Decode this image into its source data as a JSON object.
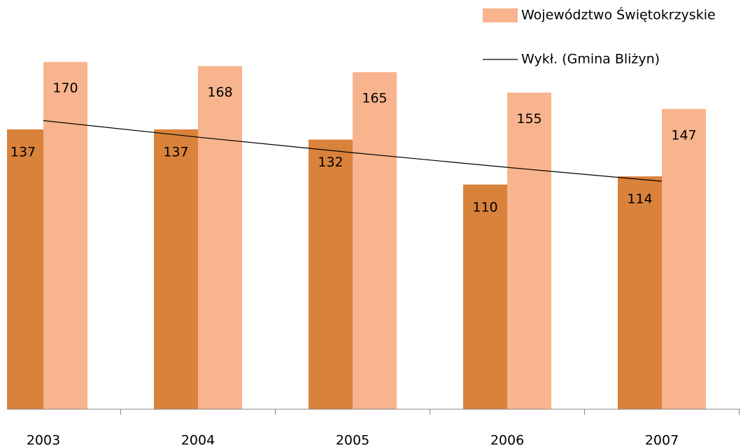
{
  "chart_data": {
    "type": "bar",
    "categories": [
      "2003",
      "2004",
      "2005",
      "2006",
      "2007"
    ],
    "series": [
      {
        "color": "#d9823b",
        "values": [
          137,
          137,
          132,
          110,
          114
        ]
      },
      {
        "name": "Województwo Świętokrzyskie",
        "color": "#f8b48e",
        "values": [
          170,
          168,
          165,
          155,
          147
        ]
      }
    ],
    "trendline": {
      "name": "Wykł. (Gmina Bliżyn)",
      "color": "#000000",
      "values": [
        141.3,
        133.2,
        125.6,
        118.4,
        111.6
      ]
    },
    "ylim": [
      0,
      200
    ]
  }
}
